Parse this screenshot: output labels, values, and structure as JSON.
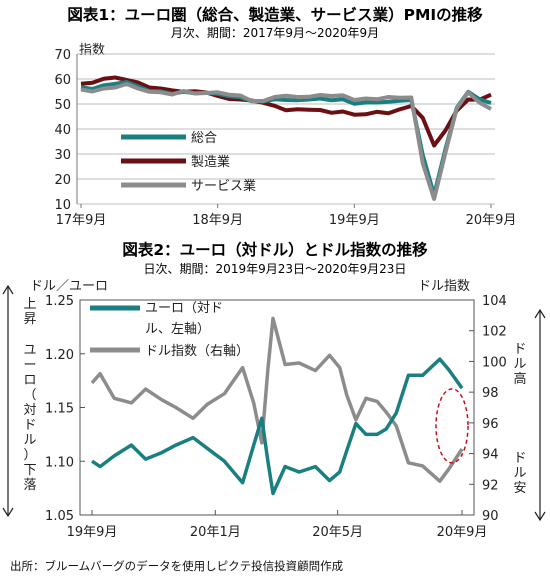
{
  "source_note": "出所：ブルームバーグのデータを使用しピクテ投信投資顧問作成",
  "chart_data": [
    {
      "type": "line",
      "title": "図表1：ユーロ圏（総合、製造業、サービス業）PMIの推移",
      "subtitle": "月次、期間：2017年9月～2020年9月",
      "ylabel": "指数",
      "ylim": [
        10,
        70
      ],
      "yticks": [
        10,
        20,
        30,
        40,
        50,
        60,
        70
      ],
      "x_tick_labels": [
        "17年9月",
        "18年9月",
        "19年9月",
        "20年9月"
      ],
      "x_tick_dates": [
        "2017-09",
        "2018-09",
        "2019-09",
        "2020-09"
      ],
      "x": [
        "2017-09",
        "2017-10",
        "2017-11",
        "2017-12",
        "2018-01",
        "2018-02",
        "2018-03",
        "2018-04",
        "2018-05",
        "2018-06",
        "2018-07",
        "2018-08",
        "2018-09",
        "2018-10",
        "2018-11",
        "2018-12",
        "2019-01",
        "2019-02",
        "2019-03",
        "2019-04",
        "2019-05",
        "2019-06",
        "2019-07",
        "2019-08",
        "2019-09",
        "2019-10",
        "2019-11",
        "2019-12",
        "2020-01",
        "2020-02",
        "2020-03",
        "2020-04",
        "2020-05",
        "2020-06",
        "2020-07",
        "2020-08",
        "2020-09"
      ],
      "series": [
        {
          "name": "総合",
          "color": "#1a7f80",
          "values": [
            56.7,
            56.0,
            57.5,
            58.1,
            58.8,
            57.1,
            55.2,
            55.1,
            54.1,
            54.9,
            54.3,
            54.5,
            54.1,
            53.1,
            52.7,
            51.1,
            51.0,
            51.9,
            51.6,
            51.5,
            51.8,
            52.2,
            51.5,
            51.9,
            50.1,
            50.6,
            50.6,
            50.9,
            51.3,
            51.6,
            29.7,
            13.6,
            31.9,
            48.5,
            54.9,
            51.9,
            50.4
          ]
        },
        {
          "name": "製造業",
          "color": "#6b0f12",
          "values": [
            58.1,
            58.5,
            60.1,
            60.6,
            59.6,
            58.6,
            56.6,
            56.2,
            55.5,
            54.9,
            55.1,
            54.6,
            53.2,
            52.0,
            51.8,
            51.4,
            50.5,
            49.3,
            47.5,
            47.9,
            47.7,
            47.6,
            46.5,
            47.0,
            45.7,
            45.9,
            46.9,
            46.3,
            47.9,
            49.2,
            44.5,
            33.4,
            39.4,
            47.4,
            51.8,
            51.7,
            53.7
          ]
        },
        {
          "name": "サービス業",
          "color": "#8c8c8c",
          "values": [
            55.8,
            55.0,
            56.2,
            56.6,
            58.0,
            56.2,
            54.9,
            54.7,
            53.8,
            55.2,
            54.2,
            54.4,
            54.7,
            53.7,
            53.4,
            51.2,
            51.2,
            52.8,
            53.3,
            52.8,
            52.9,
            53.6,
            53.2,
            53.5,
            51.6,
            52.2,
            51.9,
            52.8,
            52.5,
            52.6,
            26.4,
            12.0,
            30.5,
            48.3,
            54.7,
            50.5,
            48.0
          ]
        }
      ]
    },
    {
      "type": "line",
      "title": "図表2：ユーロ（対ドル）とドル指数の推移",
      "subtitle": "日次、期間：2019年9月23日～2020年9月23日",
      "ylabel_left": "ドル／ユーロ",
      "ylabel_right": "ドル指数",
      "ylim_left": [
        1.05,
        1.25
      ],
      "yticks_left": [
        1.05,
        1.1,
        1.15,
        1.2,
        1.25
      ],
      "ylim_right": [
        90,
        104
      ],
      "yticks_right": [
        90,
        92,
        94,
        96,
        98,
        100,
        102,
        104
      ],
      "x_tick_labels": [
        "19年9月",
        "20年1月",
        "20年5月",
        "20年9月"
      ],
      "x_tick_dates": [
        "2019-09-23",
        "2020-01-23",
        "2020-05-23",
        "2020-09-23"
      ],
      "left_arrow_top": "上昇",
      "left_arrow_mid": "ユーロ（対ドル）",
      "left_arrow_bottom": "下落",
      "right_arrow_top": "ドル高",
      "right_arrow_bottom": "ドル安",
      "annotation": "ellipse around the latest values",
      "series": [
        {
          "name": "ユーロ（対ドル、左軸）",
          "axis": "left",
          "color": "#1a7f80",
          "x": [
            "2019-09-23",
            "2019-10-01",
            "2019-10-15",
            "2019-11-01",
            "2019-11-15",
            "2019-12-01",
            "2019-12-15",
            "2020-01-01",
            "2020-01-15",
            "2020-02-01",
            "2020-02-19",
            "2020-03-01",
            "2020-03-09",
            "2020-03-15",
            "2020-03-20",
            "2020-04-01",
            "2020-04-15",
            "2020-05-01",
            "2020-05-15",
            "2020-05-25",
            "2020-06-01",
            "2020-06-10",
            "2020-06-20",
            "2020-07-01",
            "2020-07-10",
            "2020-07-20",
            "2020-08-01",
            "2020-08-15",
            "2020-09-01",
            "2020-09-10",
            "2020-09-23"
          ],
          "values": [
            1.1,
            1.095,
            1.105,
            1.115,
            1.102,
            1.108,
            1.115,
            1.122,
            1.112,
            1.1,
            1.08,
            1.115,
            1.14,
            1.1,
            1.07,
            1.095,
            1.09,
            1.095,
            1.082,
            1.09,
            1.11,
            1.135,
            1.125,
            1.125,
            1.13,
            1.145,
            1.18,
            1.18,
            1.195,
            1.185,
            1.168
          ]
        },
        {
          "name": "ドル指数（右軸）",
          "axis": "right",
          "color": "#8c8c8c",
          "x": [
            "2019-09-23",
            "2019-10-01",
            "2019-10-15",
            "2019-11-01",
            "2019-11-15",
            "2019-12-01",
            "2019-12-15",
            "2020-01-01",
            "2020-01-15",
            "2020-02-01",
            "2020-02-19",
            "2020-03-01",
            "2020-03-09",
            "2020-03-15",
            "2020-03-20",
            "2020-04-01",
            "2020-04-15",
            "2020-05-01",
            "2020-05-15",
            "2020-05-25",
            "2020-06-01",
            "2020-06-10",
            "2020-06-20",
            "2020-07-01",
            "2020-07-10",
            "2020-07-20",
            "2020-08-01",
            "2020-08-15",
            "2020-09-01",
            "2020-09-10",
            "2020-09-23"
          ],
          "values": [
            98.6,
            99.2,
            97.6,
            97.3,
            98.2,
            97.5,
            97.0,
            96.3,
            97.2,
            97.9,
            99.6,
            97.3,
            94.7,
            99.5,
            102.8,
            99.8,
            99.9,
            99.4,
            100.4,
            99.6,
            97.8,
            96.2,
            97.6,
            97.4,
            96.7,
            95.8,
            93.4,
            93.2,
            92.2,
            93.0,
            94.3
          ]
        }
      ]
    }
  ]
}
